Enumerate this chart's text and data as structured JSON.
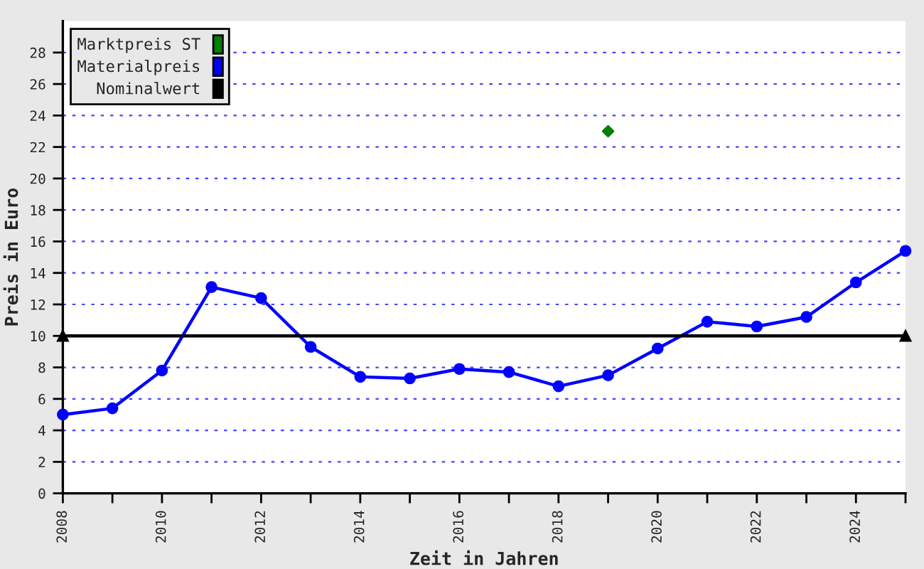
{
  "chart_data": {
    "type": "line",
    "xlabel": "Zeit in Jahren",
    "ylabel": "Preis in Euro",
    "xlim": [
      2008,
      2025
    ],
    "ylim": [
      0,
      30
    ],
    "xticks": [
      2008,
      {
        "value": 2009,
        "label": null
      },
      2010,
      {
        "value": 2011,
        "label": null
      },
      2012,
      {
        "value": 2013,
        "label": null
      },
      2014,
      {
        "value": 2015,
        "label": null
      },
      2016,
      {
        "value": 2017,
        "label": null
      },
      2018,
      {
        "value": 2019,
        "label": null
      },
      2020,
      {
        "value": 2021,
        "label": null
      },
      2022,
      {
        "value": 2023,
        "label": null
      },
      2024,
      {
        "value": 2025,
        "label": null
      }
    ],
    "yticks": [
      0,
      2,
      4,
      6,
      8,
      10,
      12,
      14,
      16,
      18,
      20,
      22,
      24,
      26,
      28
    ],
    "grid": "y",
    "legend": "top left",
    "series": [
      {
        "name": "Marktpreis ST",
        "type": "scatter",
        "color": "#008000",
        "marker": "diamond",
        "x": [
          2019
        ],
        "values": [
          23.0
        ]
      },
      {
        "name": "Materialpreis",
        "color": "#0000ff",
        "marker": "circle",
        "x": [
          2008,
          2009,
          2010,
          2011,
          2012,
          2013,
          2014,
          2015,
          2016,
          2017,
          2018,
          2019,
          2020,
          2021,
          2022,
          2023,
          2024,
          2025
        ],
        "values": [
          5.0,
          5.4,
          7.8,
          13.1,
          12.4,
          9.3,
          7.4,
          7.3,
          7.9,
          7.7,
          6.8,
          7.5,
          9.2,
          10.9,
          10.6,
          11.2,
          13.4,
          15.4
        ]
      },
      {
        "name": "Nominalwert",
        "color": "#000000",
        "marker": "triangle",
        "x": [
          2008,
          2025
        ],
        "values": [
          10,
          10
        ]
      }
    ]
  }
}
